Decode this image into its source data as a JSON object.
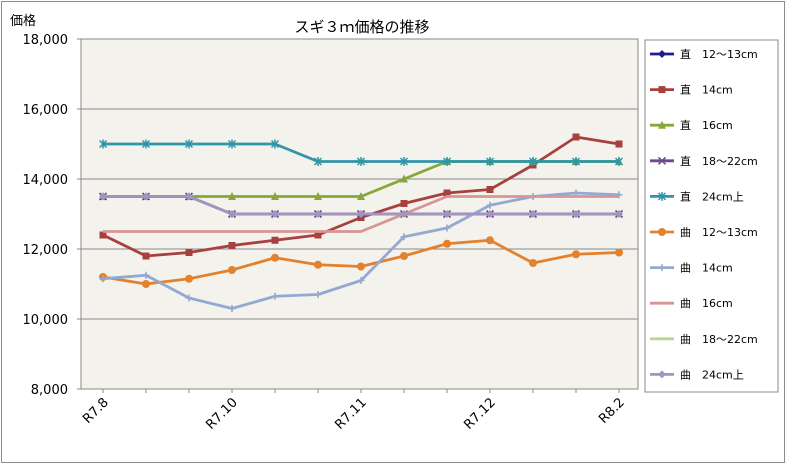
{
  "chart_data": {
    "type": "line",
    "title": "スギ３ｍ価格の推移",
    "ylabel": "価格",
    "ylim": [
      8000,
      18000
    ],
    "y_ticks": [
      "8,000",
      "10,000",
      "12,000",
      "14,000",
      "16,000",
      "18,000"
    ],
    "y_tick_values": [
      8000,
      10000,
      12000,
      14000,
      16000,
      18000
    ],
    "x_tick_labels": [
      "R7.8",
      "R7.10",
      "R7.11",
      "R7.12",
      "R8.2"
    ],
    "x_tick_positions": [
      0,
      3,
      6,
      9,
      12
    ],
    "grid": true,
    "legend_position": "right",
    "series": [
      {
        "name": "直　12～13cm",
        "color": "#1f1f8a",
        "marker": "diamond",
        "values": []
      },
      {
        "name": "直　14cm",
        "color": "#a8413e",
        "marker": "square",
        "values": [
          12400,
          11800,
          11900,
          12100,
          12250,
          12400,
          12900,
          13300,
          13600,
          13700,
          14400,
          15200,
          15000
        ]
      },
      {
        "name": "直　16cm",
        "color": "#86a83b",
        "marker": "triangle",
        "values": [
          13500,
          13500,
          13500,
          13500,
          13500,
          13500,
          13500,
          14000,
          14500,
          14500,
          14500,
          14500,
          14500
        ]
      },
      {
        "name": "直　18～22cm",
        "color": "#6d4a8f",
        "marker": "cross",
        "values": [
          13500,
          13500,
          13500,
          13000,
          13000,
          13000,
          13000,
          13000,
          13000,
          13000,
          13000,
          13000,
          13000
        ]
      },
      {
        "name": "直　24cm上",
        "color": "#2f95a8",
        "marker": "star",
        "values": [
          15000,
          15000,
          15000,
          15000,
          15000,
          14500,
          14500,
          14500,
          14500,
          14500,
          14500,
          14500,
          14500
        ]
      },
      {
        "name": "曲　12～13cm",
        "color": "#e2822e",
        "marker": "circle",
        "values": [
          11200,
          11000,
          11150,
          11400,
          11750,
          11550,
          11500,
          11800,
          12150,
          12250,
          11600,
          11850,
          11900
        ]
      },
      {
        "name": "曲　14cm",
        "color": "#93a9d2",
        "marker": "plus",
        "values": [
          11150,
          11250,
          10600,
          10300,
          10650,
          10700,
          11100,
          12350,
          12600,
          13250,
          13500,
          13600,
          13550
        ]
      },
      {
        "name": "曲　16cm",
        "color": "#d99593",
        "marker": "none",
        "values": [
          12500,
          12500,
          12500,
          12500,
          12500,
          12500,
          12500,
          13000,
          13500,
          13500,
          13500,
          13500,
          13500
        ]
      },
      {
        "name": "曲　18～22cm",
        "color": "#bcd592",
        "marker": "none",
        "values": []
      },
      {
        "name": "曲　24cm上",
        "color": "#a394c0",
        "marker": "diamond",
        "values": [
          13500,
          13500,
          13500,
          13000,
          13000,
          13000,
          13000,
          13000,
          13000,
          13000,
          13000,
          13000,
          13000
        ]
      }
    ]
  }
}
